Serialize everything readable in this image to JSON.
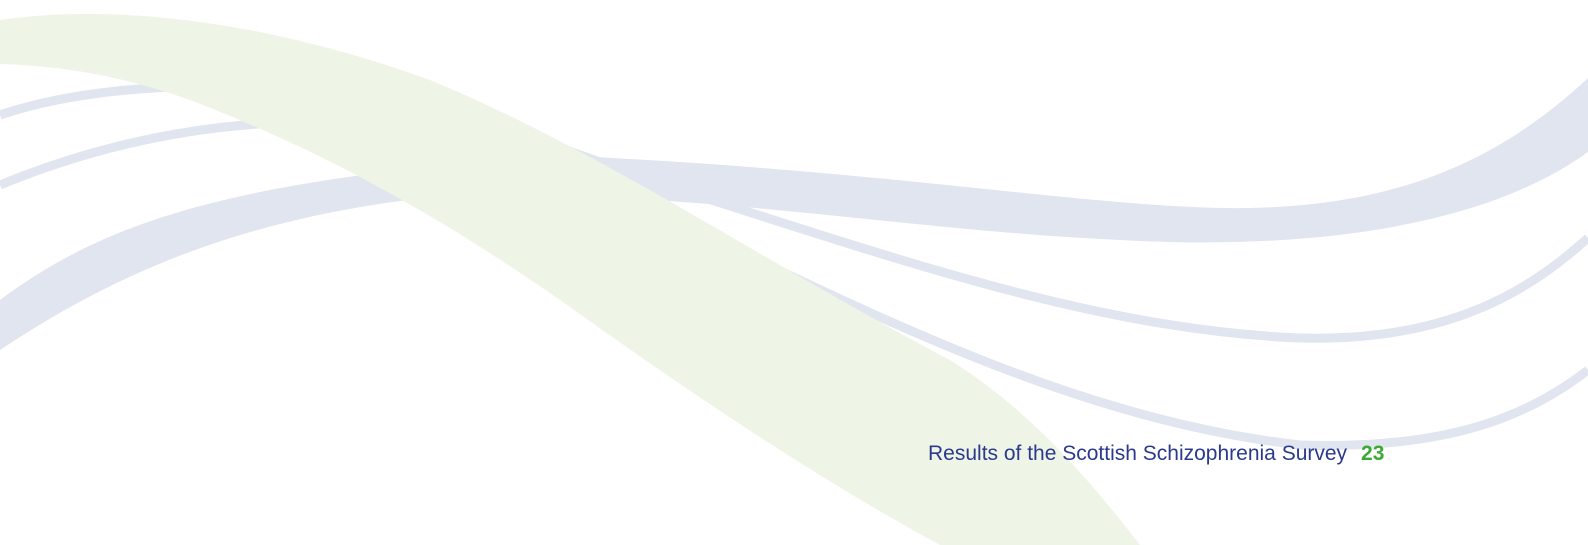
{
  "footer": {
    "title": "Results of the Scottish Schizophrenia Survey",
    "page_number": "23"
  },
  "colors": {
    "wave_blue": "#e1e5ef",
    "wave_green": "#eff5e6",
    "title_text": "#2b3a8c",
    "page_number": "#3aaa35"
  }
}
